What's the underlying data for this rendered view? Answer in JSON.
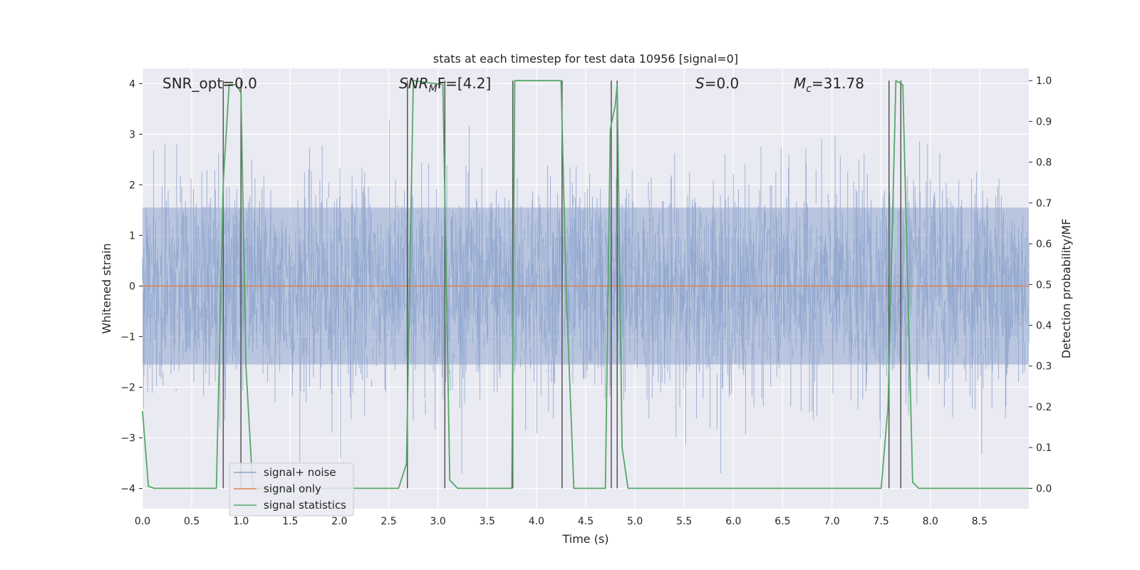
{
  "chart_data": {
    "type": "line",
    "title": "stats at each timestep for test data 10956 [signal=0]",
    "xlabel": "Time (s)",
    "ylabel": "Whitened strain",
    "y2label": "Detection probability/MF",
    "xlim": [
      0.0,
      9.0
    ],
    "ylim": [
      -4.4,
      4.3
    ],
    "y2lim": [
      -0.05,
      1.03
    ],
    "xticks": [
      "0.0",
      "0.5",
      "1.0",
      "1.5",
      "2.0",
      "2.5",
      "3.0",
      "3.5",
      "4.0",
      "4.5",
      "5.0",
      "5.5",
      "6.0",
      "6.5",
      "7.0",
      "7.5",
      "8.0",
      "8.5"
    ],
    "xtick_values": [
      0.0,
      0.5,
      1.0,
      1.5,
      2.0,
      2.5,
      3.0,
      3.5,
      4.0,
      4.5,
      5.0,
      5.5,
      6.0,
      6.5,
      7.0,
      7.5,
      8.0,
      8.5
    ],
    "yticks": [
      "4",
      "3",
      "2",
      "1",
      "0",
      "−1",
      "−2",
      "−3",
      "−4"
    ],
    "ytick_values": [
      4,
      3,
      2,
      1,
      0,
      -1,
      -2,
      -3,
      -4
    ],
    "y2ticks": [
      "1.0",
      "0.9",
      "0.8",
      "0.7",
      "0.6",
      "0.5",
      "0.4",
      "0.3",
      "0.2",
      "0.1",
      "0.0"
    ],
    "y2tick_values": [
      1.0,
      0.9,
      0.8,
      0.7,
      0.6,
      0.5,
      0.4,
      0.3,
      0.2,
      0.1,
      0.0
    ],
    "grid": true,
    "legend_position": "lower-left",
    "annotations": {
      "snr_opt": "SNR_opt=0.0",
      "snr_mf_prefix": "SNR",
      "snr_mf_sub": "M",
      "snr_mf_suffix": "F=[4.2]",
      "s_italic": "S",
      "s_value": "=0.0",
      "mc_italic": "M",
      "mc_sub": "c",
      "mc_value": "=31.78"
    },
    "series": [
      {
        "name": "signal+ noise",
        "color": "#8fa5cd",
        "axis": "left",
        "kind": "noise",
        "envelope_approx": [
          -2.5,
          2.5
        ],
        "peak_values": [
          3.1,
          -3.5,
          3.0,
          -3.8,
          2.9,
          -3.2,
          2.8,
          -3.3,
          3.2,
          -3.2,
          3.1,
          3.4,
          -3.1,
          2.8
        ]
      },
      {
        "name": "signal only",
        "color": "#dd8452",
        "axis": "left",
        "x": [
          0.0,
          9.0
        ],
        "y": [
          0.0,
          0.0
        ]
      },
      {
        "name": "signal statistics",
        "color": "#55a868",
        "axis": "right",
        "x": [
          0.0,
          0.06,
          0.12,
          0.75,
          0.82,
          0.88,
          0.95,
          1.0,
          1.05,
          1.12,
          2.6,
          2.68,
          2.75,
          3.05,
          3.12,
          3.2,
          3.75,
          3.78,
          3.85,
          4.25,
          4.3,
          4.38,
          4.7,
          4.75,
          4.8,
          4.82,
          4.87,
          4.93,
          7.5,
          7.57,
          7.65,
          7.72,
          7.82,
          7.88,
          9.0
        ],
        "y": [
          0.19,
          0.005,
          0.0,
          0.0,
          0.75,
          0.99,
          0.99,
          0.97,
          0.3,
          0.0,
          0.0,
          0.06,
          1.0,
          0.99,
          0.02,
          0.0,
          0.0,
          1.0,
          1.0,
          1.0,
          0.5,
          0.0,
          0.0,
          0.88,
          0.94,
          0.99,
          0.1,
          0.0,
          0.0,
          0.2,
          1.0,
          0.99,
          0.015,
          0.0,
          0.0
        ]
      }
    ],
    "vertical_markers": {
      "color": "#555555",
      "x": [
        0.82,
        1.0,
        2.69,
        3.07,
        3.76,
        4.26,
        4.76,
        4.82,
        7.58,
        7.7
      ]
    }
  }
}
